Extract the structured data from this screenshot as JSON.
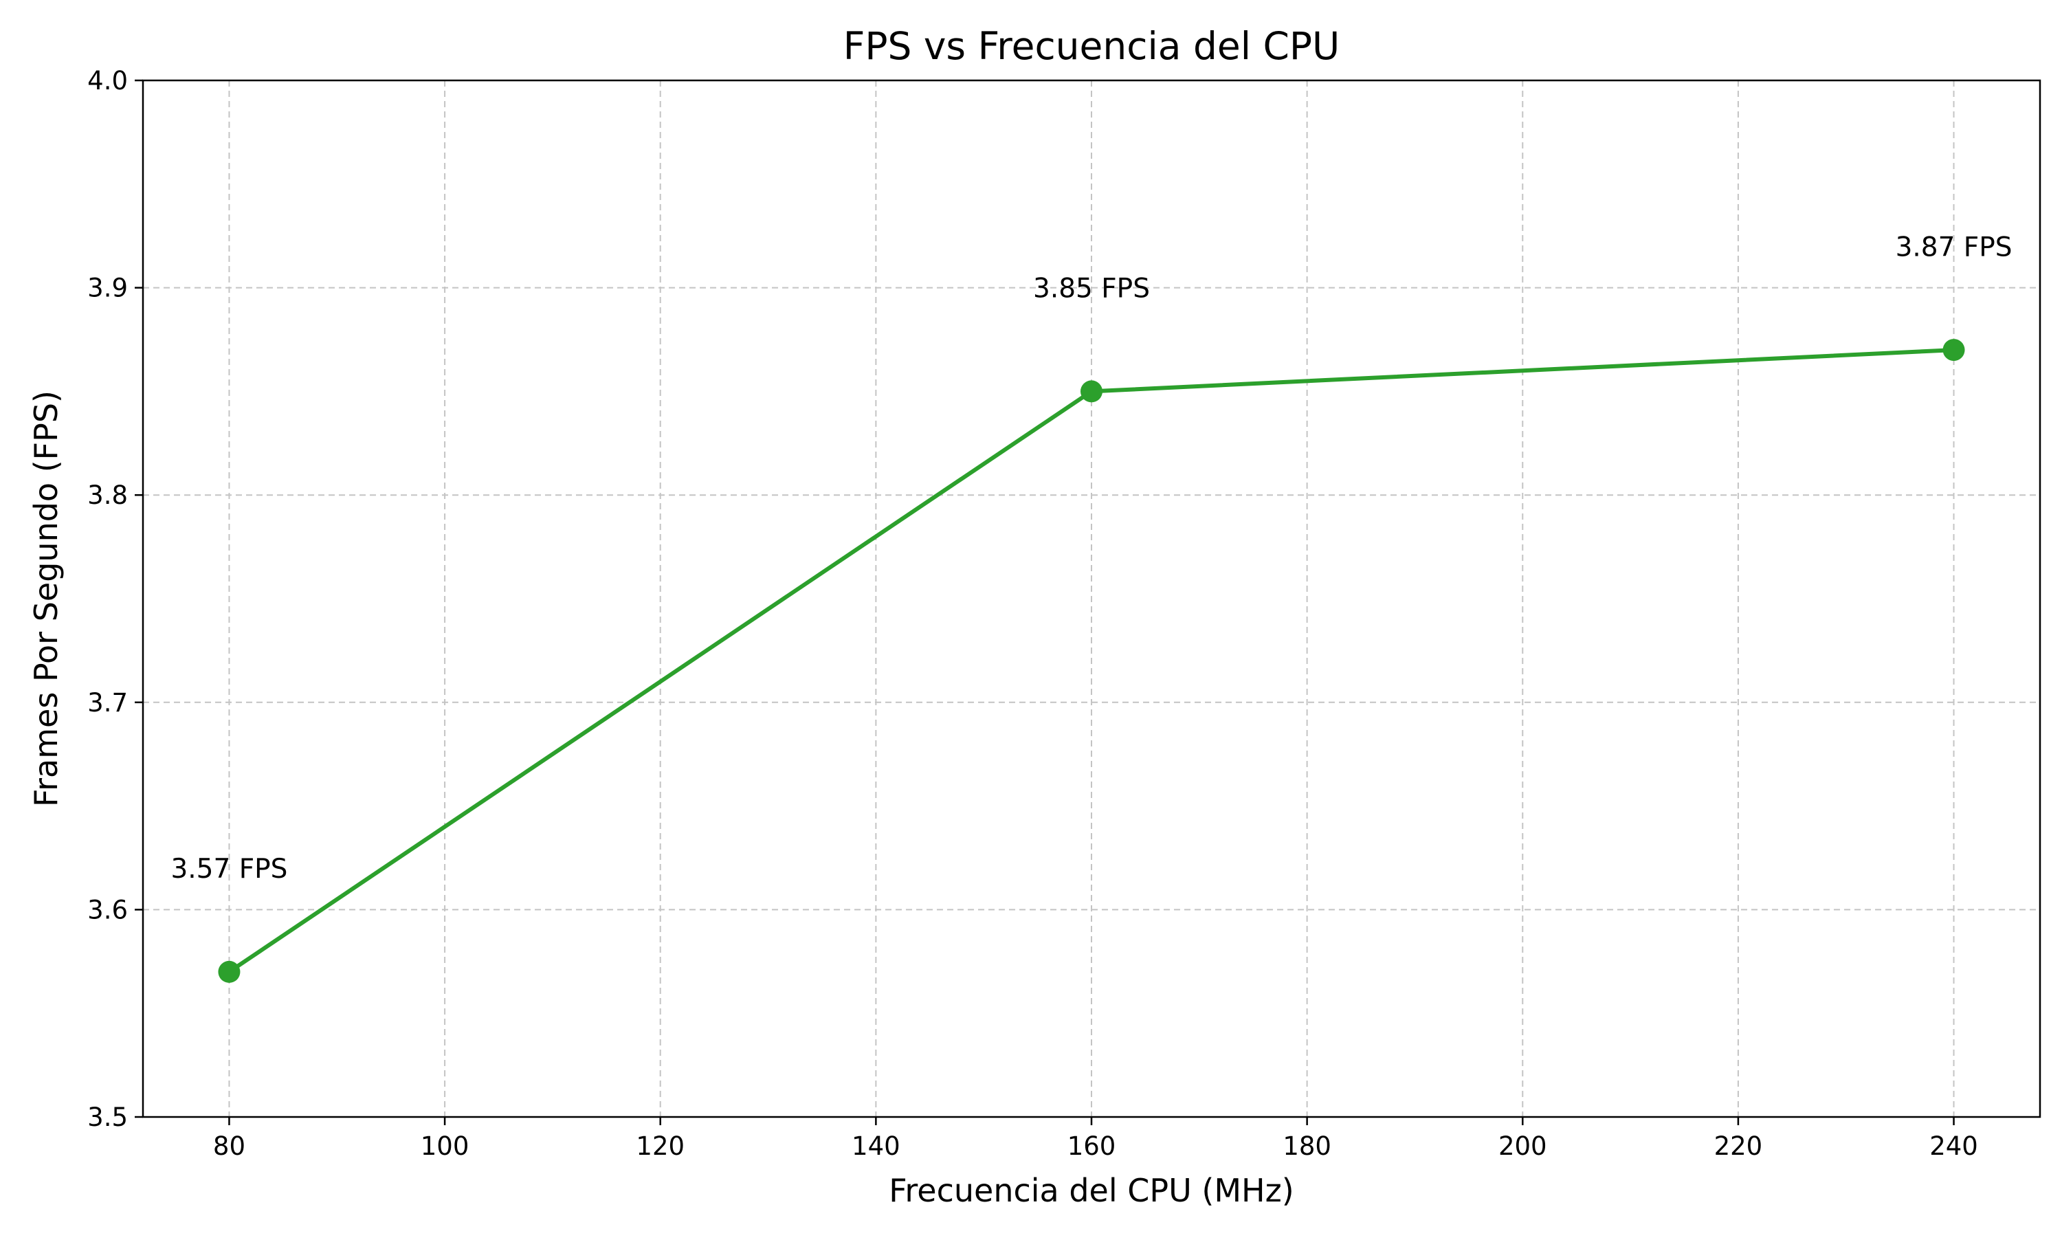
{
  "chart_data": {
    "type": "line",
    "title": "FPS vs Frecuencia del CPU",
    "xlabel": "Frecuencia del CPU (MHz)",
    "ylabel": "Frames Por Segundo (FPS)",
    "xlim": [
      72,
      248
    ],
    "ylim": [
      3.5,
      4.0
    ],
    "x_ticks": [
      "80",
      "100",
      "120",
      "140",
      "160",
      "180",
      "200",
      "220",
      "240"
    ],
    "y_ticks": [
      "3.5",
      "3.6",
      "3.7",
      "3.8",
      "3.9",
      "4.0"
    ],
    "grid": true,
    "series": [
      {
        "x": [
          80,
          160,
          240
        ],
        "values": [
          3.57,
          3.85,
          3.87
        ],
        "color": "#2ca02c",
        "labels": [
          "3.57 FPS",
          "3.85 FPS",
          "3.87 FPS"
        ]
      }
    ]
  }
}
